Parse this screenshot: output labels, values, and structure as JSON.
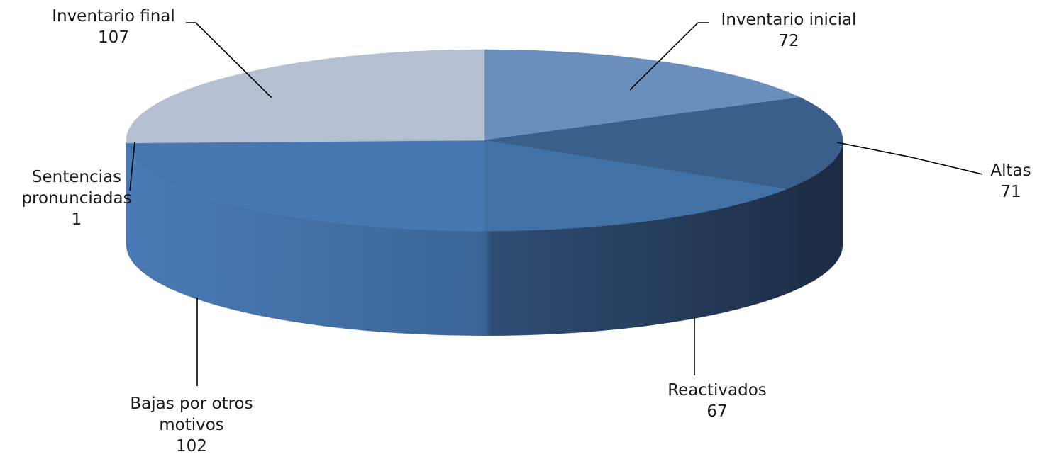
{
  "chart_data": {
    "type": "pie",
    "title": "",
    "style": "3d-exploded-flat",
    "slices": [
      {
        "label": "Inventario inicial",
        "value": 72,
        "color": "#6a8fbd"
      },
      {
        "label": "Altas",
        "value": 71,
        "color": "#3a5f8b"
      },
      {
        "label": "Reactivados",
        "value": 67,
        "color": "#4271a6"
      },
      {
        "label": "Bajas por otros motivos",
        "value": 102,
        "color": "#4677b0"
      },
      {
        "label": "Sentencias pronunciadas",
        "value": 1,
        "color": "#4a7cb6"
      },
      {
        "label": "Inventario final",
        "value": 107,
        "color": "#b4bfd2"
      }
    ],
    "label_lines": {
      "Inventario inicial": [
        "Inventario inicial",
        "72"
      ],
      "Altas": [
        "Altas",
        "71"
      ],
      "Reactivados": [
        "Reactivados",
        "67"
      ],
      "Bajas por otros motivos": [
        "Bajas por otros",
        "motivos",
        "102"
      ],
      "Sentencias pronunciadas": [
        "Sentencias",
        "pronunciadas",
        "1"
      ],
      "Inventario final": [
        "Inventario final",
        "107"
      ]
    }
  }
}
